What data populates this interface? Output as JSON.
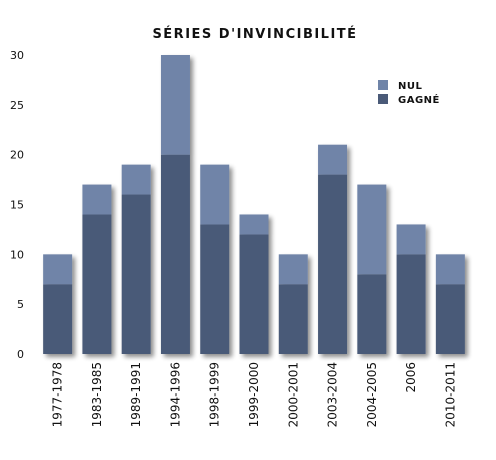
{
  "chart_data": {
    "type": "bar",
    "stacked": true,
    "title": "SÉRIES D'INVINCIBILITÉ",
    "xlabel": "",
    "ylabel": "",
    "ylim": [
      0,
      30
    ],
    "yticks": [
      0,
      5,
      10,
      15,
      20,
      25,
      30
    ],
    "grid": false,
    "legend_position": "top-right",
    "categories": [
      "1977-1978",
      "1983-1985",
      "1989-1991",
      "1994-1996",
      "1998-1999",
      "1999-2000",
      "2000-2001",
      "2003-2004",
      "2004-2005",
      "2006",
      "2010-2011"
    ],
    "series": [
      {
        "name": "GAGNÉ",
        "color": "#4a5a78",
        "values": [
          7,
          14,
          16,
          20,
          13,
          12,
          7,
          18,
          8,
          10,
          7
        ]
      },
      {
        "name": "NUL",
        "color": "#6f84a8",
        "values": [
          3,
          3,
          3,
          10,
          6,
          2,
          3,
          3,
          9,
          3,
          3
        ]
      }
    ],
    "legend_order": [
      "NUL",
      "GAGNÉ"
    ]
  }
}
